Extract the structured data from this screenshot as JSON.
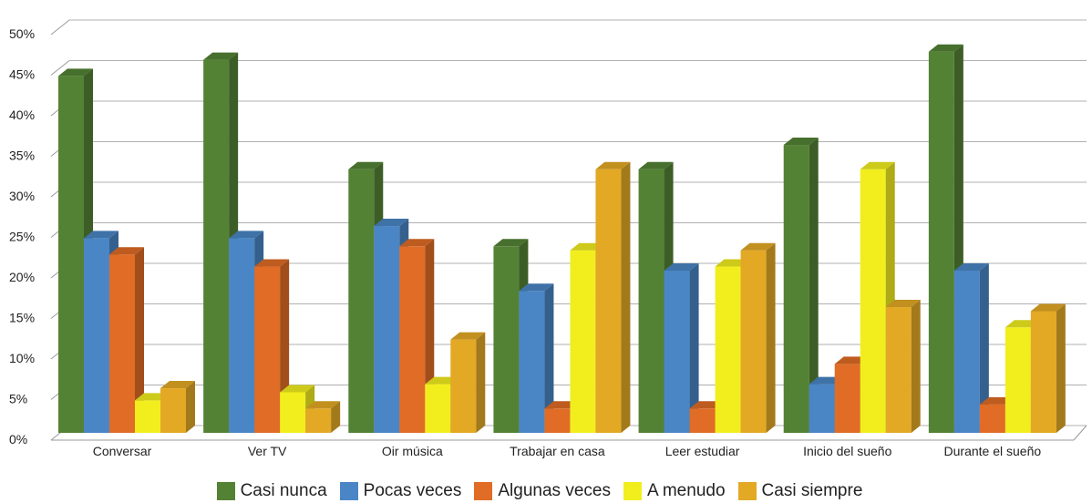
{
  "chart_data": {
    "type": "bar",
    "categories": [
      "Conversar",
      "Ver TV",
      "Oir música",
      "Trabajar en casa",
      "Leer estudiar",
      "Inicio del sueño",
      "Durante el sueño"
    ],
    "series": [
      {
        "name": "Casi nunca",
        "color": "#548235",
        "values": [
          44,
          46,
          32.5,
          23,
          32.5,
          35.5,
          47
        ]
      },
      {
        "name": "Pocas veces",
        "color": "#4a86c5",
        "values": [
          24,
          24,
          25.5,
          17.5,
          20,
          6,
          20
        ]
      },
      {
        "name": "Algunas veces",
        "color": "#e06c26",
        "values": [
          22,
          20.5,
          23,
          3,
          3,
          8.5,
          3.5
        ]
      },
      {
        "name": "A menudo",
        "color": "#f2ee1e",
        "values": [
          4,
          5,
          6,
          22.5,
          20.5,
          32.5,
          13
        ]
      },
      {
        "name": "Casi siempre",
        "color": "#e3a925",
        "values": [
          5.5,
          3,
          11.5,
          32.5,
          22.5,
          15.5,
          15
        ]
      }
    ],
    "yticks": [
      "0%",
      "5%",
      "10%",
      "15%",
      "20%",
      "25%",
      "30%",
      "35%",
      "40%",
      "45%",
      "50%"
    ],
    "ylim": [
      0,
      50
    ],
    "grid": true,
    "legend_position": "bottom"
  }
}
